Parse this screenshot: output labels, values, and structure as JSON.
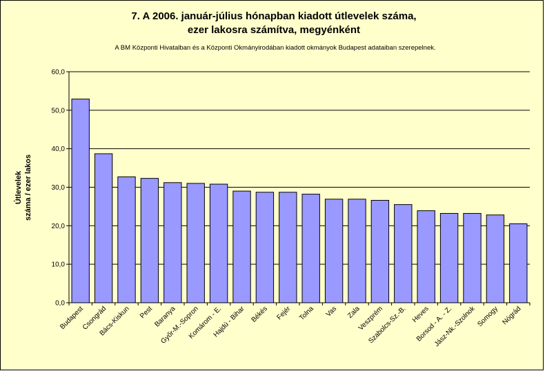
{
  "chart_data": {
    "type": "bar",
    "title_line1": "7. A 2006. január-július hónapban kiadott útlevelek száma,",
    "title_line2": "ezer lakosra számítva, megyénként",
    "subtitle": "A BM Központi Hivatalban és a Központi Okmányirodában kiadott okmányok Budapest adataiban szerepelnek.",
    "ylabel_line1": "Útlevelek",
    "ylabel_line2": "száma / ezer lakos",
    "xlabel": "",
    "ylim": [
      0,
      60
    ],
    "yticks": [
      "0,0",
      "10,0",
      "20,0",
      "30,0",
      "40,0",
      "50,0",
      "60,0"
    ],
    "grid": true,
    "bar_color": "#9999ff",
    "background": "#ffffcc",
    "categories": [
      "Budapest",
      "Csongrád",
      "Bács-Kiskun",
      "Pest",
      "Baranya",
      "Győr-M.-Sopron",
      "Komárom - E.",
      "Hajdú - Bihar",
      "Békés",
      "Fejér",
      "Tolna",
      "Vas",
      "Zala",
      "Veszprém",
      "Szabolcs-Sz.-B.",
      "Heves",
      "Borsod - A. - Z.",
      "Jász-Nk.-Szolnok",
      "Somogy",
      "Nógrád"
    ],
    "values": [
      52.9,
      38.7,
      32.7,
      32.3,
      31.2,
      31.0,
      30.8,
      29.0,
      28.7,
      28.7,
      28.2,
      26.9,
      26.9,
      26.6,
      25.5,
      23.9,
      23.2,
      23.2,
      22.8,
      20.5
    ]
  }
}
